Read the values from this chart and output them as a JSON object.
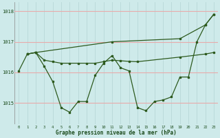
{
  "bg_color": "#ceeaea",
  "line_color": "#2d5a1e",
  "grid_color_h": "#e8aaaa",
  "grid_color_v": "#b8d8d8",
  "xlabel": "Graphe pression niveau de la mer (hPa)",
  "ylim": [
    1014.3,
    1018.3
  ],
  "xlim": [
    -0.5,
    23.5
  ],
  "yticks": [
    1015,
    1016,
    1017,
    1018
  ],
  "xticks": [
    0,
    1,
    2,
    3,
    4,
    5,
    6,
    7,
    8,
    9,
    10,
    11,
    12,
    13,
    14,
    15,
    16,
    17,
    18,
    19,
    20,
    21,
    22,
    23
  ],
  "line1_x": [
    0,
    1,
    2,
    3,
    4,
    5,
    6,
    7,
    8,
    9,
    10,
    11,
    12,
    13,
    14,
    15,
    16,
    17,
    18,
    19,
    20,
    21,
    22,
    23
  ],
  "line1_y": [
    1016.05,
    1016.6,
    1016.65,
    1016.2,
    1015.7,
    1014.85,
    1014.7,
    1015.05,
    1015.05,
    1015.9,
    1016.3,
    1016.55,
    1016.15,
    1016.05,
    1014.85,
    1014.75,
    1015.05,
    1015.1,
    1015.2,
    1015.85,
    1015.85,
    1017.0,
    1017.55,
    1017.9
  ],
  "line2_x": [
    1,
    2,
    11,
    19,
    22,
    23
  ],
  "line2_y": [
    1016.6,
    1016.65,
    1017.0,
    1017.1,
    1017.55,
    1017.9
  ],
  "line3_x": [
    1,
    2,
    3,
    4,
    5,
    6,
    7,
    8,
    9,
    10,
    11,
    12,
    13,
    14,
    19,
    22,
    23
  ],
  "line3_y": [
    1016.6,
    1016.65,
    1016.4,
    1016.35,
    1016.3,
    1016.3,
    1016.3,
    1016.3,
    1016.3,
    1016.35,
    1016.4,
    1016.38,
    1016.36,
    1016.35,
    1016.5,
    1016.6,
    1016.65
  ]
}
